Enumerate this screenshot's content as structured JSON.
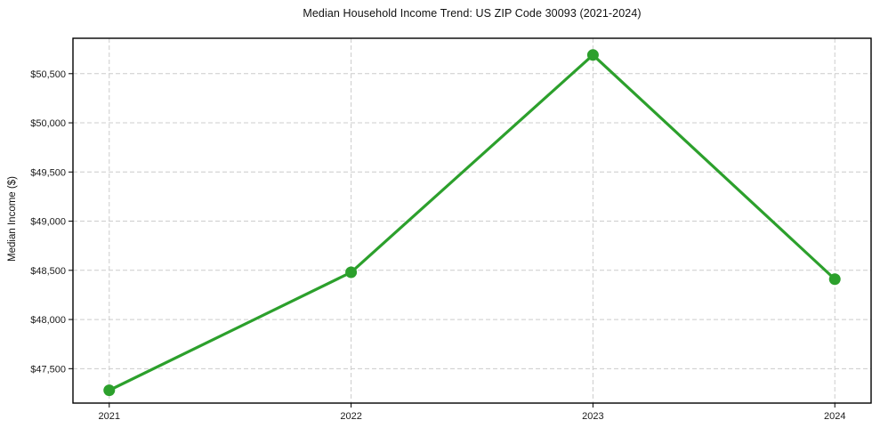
{
  "chart_data": {
    "type": "line",
    "title": "Median Household Income Trend: US ZIP Code 30093 (2021-2024)",
    "xlabel": "",
    "ylabel": "Median Income ($)",
    "x": [
      2021,
      2022,
      2023,
      2024
    ],
    "series": [
      {
        "values": [
          47280,
          48480,
          50690,
          48410
        ],
        "color": "#2ca02c",
        "marker": "circle",
        "line_width": 3.2,
        "marker_size": 13
      }
    ],
    "xticks": {
      "values": [
        2021,
        2022,
        2023,
        2024
      ],
      "labels": [
        "2021",
        "2022",
        "2023",
        "2024"
      ]
    },
    "yticks": {
      "values": [
        47500,
        48000,
        48500,
        49000,
        49500,
        50000,
        50500
      ],
      "labels": [
        "$47,500",
        "$48,000",
        "$48,500",
        "$49,000",
        "$49,500",
        "$50,000",
        "$50,500"
      ]
    },
    "xlim": [
      2020.85,
      2024.15
    ],
    "ylim": [
      47150,
      50860
    ],
    "grid": {
      "on": true,
      "style": "dashed",
      "color": "#cccccc"
    },
    "axis_color": "#000000",
    "tick_color": "#000000",
    "background": "#ffffff",
    "legend": null
  }
}
